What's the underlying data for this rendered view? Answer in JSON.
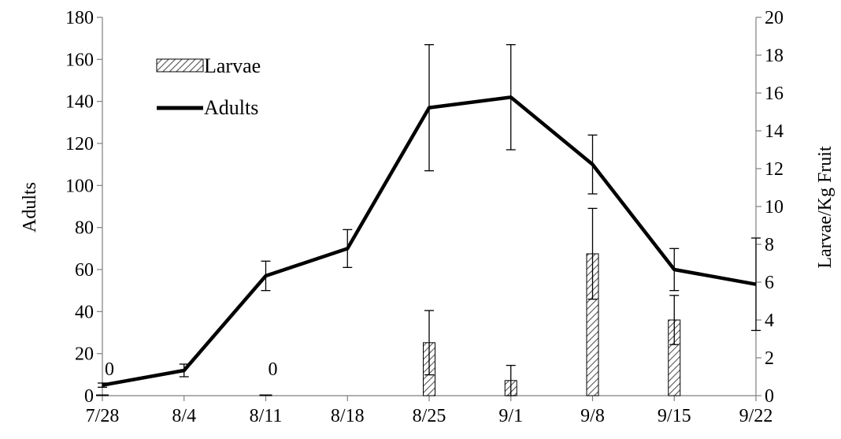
{
  "chart_data": {
    "type": "bar+line",
    "categories": [
      "7/28",
      "8/4",
      "8/11",
      "8/18",
      "8/25",
      "9/1",
      "9/8",
      "9/15",
      "9/22"
    ],
    "series": [
      {
        "name": "Larvae",
        "kind": "bar",
        "axis": "right",
        "values": [
          0,
          null,
          0,
          null,
          2.8,
          0.8,
          7.5,
          4.0,
          null
        ],
        "error": [
          null,
          null,
          null,
          null,
          1.7,
          0.8,
          2.4,
          1.3,
          null
        ]
      },
      {
        "name": "Adults",
        "kind": "line",
        "axis": "left",
        "values": [
          5,
          12,
          57,
          70,
          137,
          142,
          110,
          60,
          53
        ],
        "error": [
          1,
          3,
          7,
          9,
          30,
          25,
          14,
          10,
          22
        ]
      }
    ],
    "data_labels": [
      {
        "category": "7/28",
        "text": "0"
      },
      {
        "category": "8/11",
        "text": "0"
      }
    ],
    "ylabel": "Adults",
    "y2label": "Larvae/Kg Fruit",
    "ylim": [
      0,
      180
    ],
    "y_ticks": [
      0,
      20,
      40,
      60,
      80,
      100,
      120,
      140,
      160,
      180
    ],
    "y2lim": [
      0,
      20
    ],
    "y2_ticks": [
      0,
      2,
      4,
      6,
      8,
      10,
      12,
      14,
      16,
      18,
      20
    ],
    "legend_position": "top-left",
    "grid": false,
    "colors": {
      "line": "#000000",
      "bar_stroke": "#000000",
      "bar_hatch": "#555555"
    }
  }
}
